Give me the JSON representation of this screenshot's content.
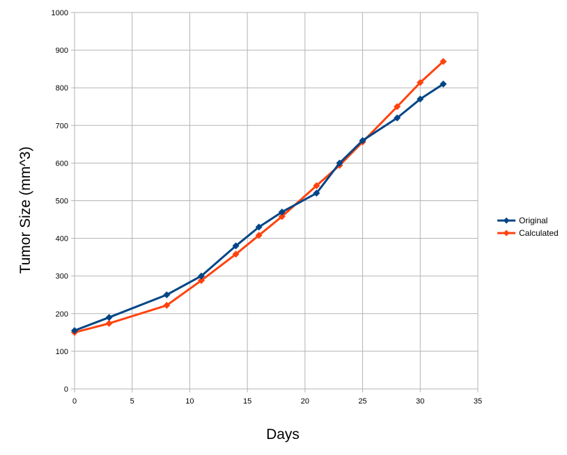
{
  "chart_data": {
    "type": "line",
    "title": "",
    "xlabel": "Days",
    "ylabel": "Tumor Size (mm^3)",
    "xlim": [
      0,
      35
    ],
    "ylim": [
      0,
      1000
    ],
    "x_ticks": [
      "0",
      "5",
      "10",
      "15",
      "20",
      "25",
      "30",
      "35"
    ],
    "y_ticks": [
      "0",
      "100",
      "200",
      "300",
      "400",
      "500",
      "600",
      "700",
      "800",
      "900",
      "1000"
    ],
    "grid": true,
    "legend_position": "right",
    "series": [
      {
        "name": "Original",
        "color": "#004586",
        "marker": "diamond",
        "x": [
          0,
          3,
          8,
          11,
          14,
          16,
          18,
          21,
          23,
          25,
          28,
          30,
          32
        ],
        "y": [
          155,
          190,
          250,
          300,
          380,
          430,
          470,
          520,
          600,
          660,
          720,
          770,
          810
        ]
      },
      {
        "name": "Calculated",
        "color": "#ff420e",
        "marker": "diamond",
        "x": [
          0,
          3,
          8,
          11,
          14,
          16,
          18,
          21,
          23,
          25,
          28,
          30,
          32
        ],
        "y": [
          150,
          174,
          222,
          288,
          358,
          408,
          458,
          540,
          594,
          656,
          750,
          814,
          870
        ]
      }
    ]
  }
}
